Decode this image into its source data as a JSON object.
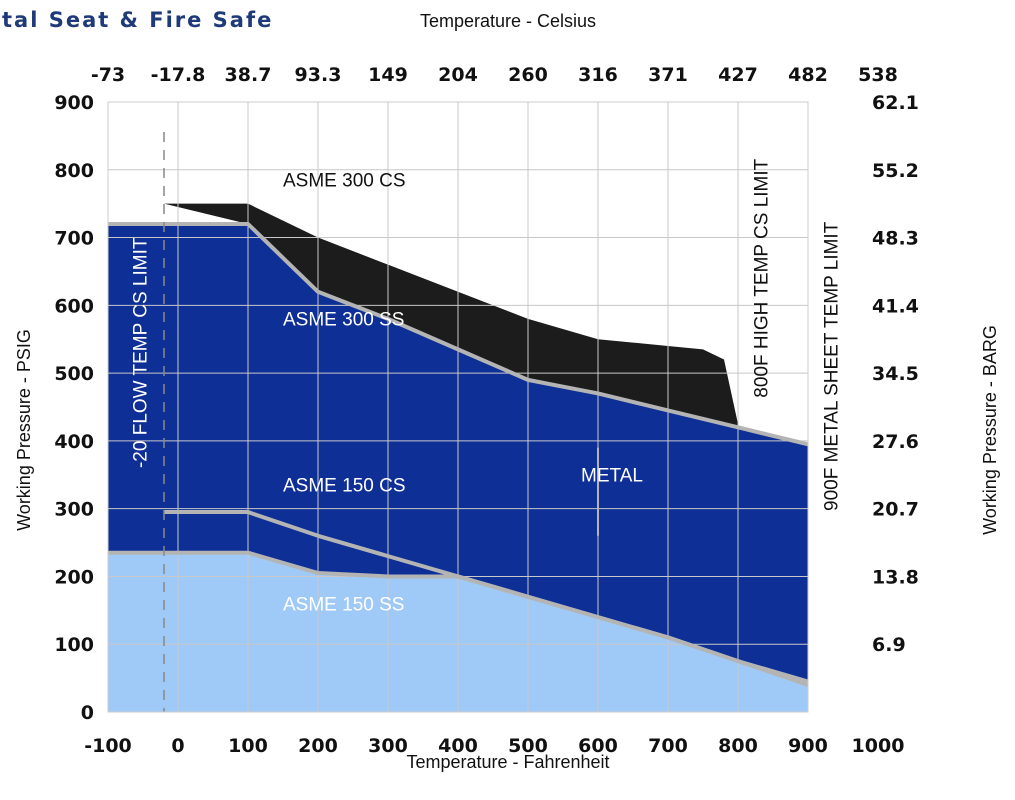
{
  "title": "tal Seat & Fire Safe",
  "top_axis_title": "Temperature - Celsius",
  "colors": {
    "cs300": "#1c1c1c",
    "ss300": "#0e2f96",
    "ss150": "#9fcaf7",
    "boundary": "#b4b4b4",
    "grid": "#c8c8c8",
    "title": "#1e3a78"
  },
  "chart_data": {
    "type": "area",
    "title": "",
    "xlabel": "Temperature - Fahrenheit",
    "ylabel": "Working Pressure - PSIG",
    "xlabel_top": "Temperature - Celsius",
    "ylabel_right": "Working Pressure - BARG",
    "xlim": [
      -100,
      1000
    ],
    "ylim": [
      0,
      900
    ],
    "grid": true,
    "x_ticks": [
      "-100",
      "0",
      "100",
      "200",
      "300",
      "400",
      "500",
      "600",
      "700",
      "800",
      "900",
      "1000"
    ],
    "x_tick_values": [
      -100,
      0,
      100,
      200,
      300,
      400,
      500,
      600,
      700,
      800,
      900,
      1000
    ],
    "x_ticks_top": [
      "-73",
      "-17.8",
      "38.7",
      "93.3",
      "149",
      "204",
      "260",
      "316",
      "371",
      "427",
      "482",
      "538"
    ],
    "x_ticks_top_values": [
      -100,
      0,
      100,
      200,
      300,
      400,
      500,
      600,
      700,
      800,
      900,
      1000
    ],
    "y_ticks": [
      "0",
      "100",
      "200",
      "300",
      "400",
      "500",
      "600",
      "700",
      "800",
      "900"
    ],
    "y_tick_values": [
      0,
      100,
      200,
      300,
      400,
      500,
      600,
      700,
      800,
      900
    ],
    "y_ticks_right": [
      "6.9",
      "13.8",
      "20.7",
      "27.6",
      "34.5",
      "41.4",
      "48.3",
      "55.2",
      "62.1"
    ],
    "y_ticks_right_values": [
      100,
      200,
      300,
      400,
      500,
      600,
      700,
      800,
      900
    ],
    "series": [
      {
        "name": "ASME 300 CS",
        "x": [
          -20,
          100,
          200,
          300,
          400,
          500,
          600,
          650,
          700,
          750,
          780,
          800
        ],
        "y": [
          750,
          750,
          700,
          660,
          620,
          580,
          550,
          545,
          540,
          535,
          520,
          425
        ]
      },
      {
        "name": "ASME 300 SS",
        "x": [
          -100,
          100,
          150,
          200,
          300,
          400,
          500,
          600,
          700,
          800,
          900
        ],
        "y": [
          720,
          720,
          670,
          620,
          580,
          535,
          490,
          470,
          445,
          420,
          395
        ]
      },
      {
        "name": "ASME 150 CS",
        "x": [
          -20,
          100,
          200,
          300,
          400,
          500,
          600,
          700,
          800,
          900
        ],
        "y": [
          295,
          295,
          260,
          230,
          200,
          170,
          140,
          110,
          75,
          45
        ]
      },
      {
        "name": "ASME 150 SS",
        "x": [
          -100,
          100,
          200,
          300,
          400,
          500,
          600,
          700,
          800,
          900
        ],
        "y": [
          235,
          235,
          205,
          200,
          200,
          170,
          140,
          110,
          75,
          40
        ]
      },
      {
        "name": "METAL",
        "x": [
          600,
          600
        ],
        "y": [
          260,
          390
        ]
      }
    ],
    "annotations": [
      {
        "text": "ASME 300 CS",
        "x": 150,
        "y": 775,
        "color": "#111111",
        "rotate": false
      },
      {
        "text": "ASME 300 SS",
        "x": 150,
        "y": 570,
        "color": "#ffffff",
        "rotate": false
      },
      {
        "text": "ASME 150 CS",
        "x": 150,
        "y": 325,
        "color": "#ffffff",
        "rotate": false
      },
      {
        "text": "METAL",
        "x": 620,
        "y": 340,
        "color": "#ffffff",
        "rotate": false
      },
      {
        "text": "ASME 150 SS",
        "x": 150,
        "y": 150,
        "color": "#ffffff",
        "rotate": false
      },
      {
        "text": "-20 FLOW TEMP CS LIMIT",
        "x": -45,
        "y": 530,
        "color": "#ffffff",
        "rotate": true
      },
      {
        "text": "800F HIGH TEMP CS LIMIT",
        "x": 842,
        "y": 640,
        "color": "#111111",
        "rotate": true
      },
      {
        "text": "900F METAL SHEET TEMP LIMIT",
        "x": 942,
        "y": 510,
        "color": "#111111",
        "rotate": true
      }
    ],
    "reference_lines": [
      {
        "x": -20,
        "style": "dashed"
      }
    ]
  }
}
